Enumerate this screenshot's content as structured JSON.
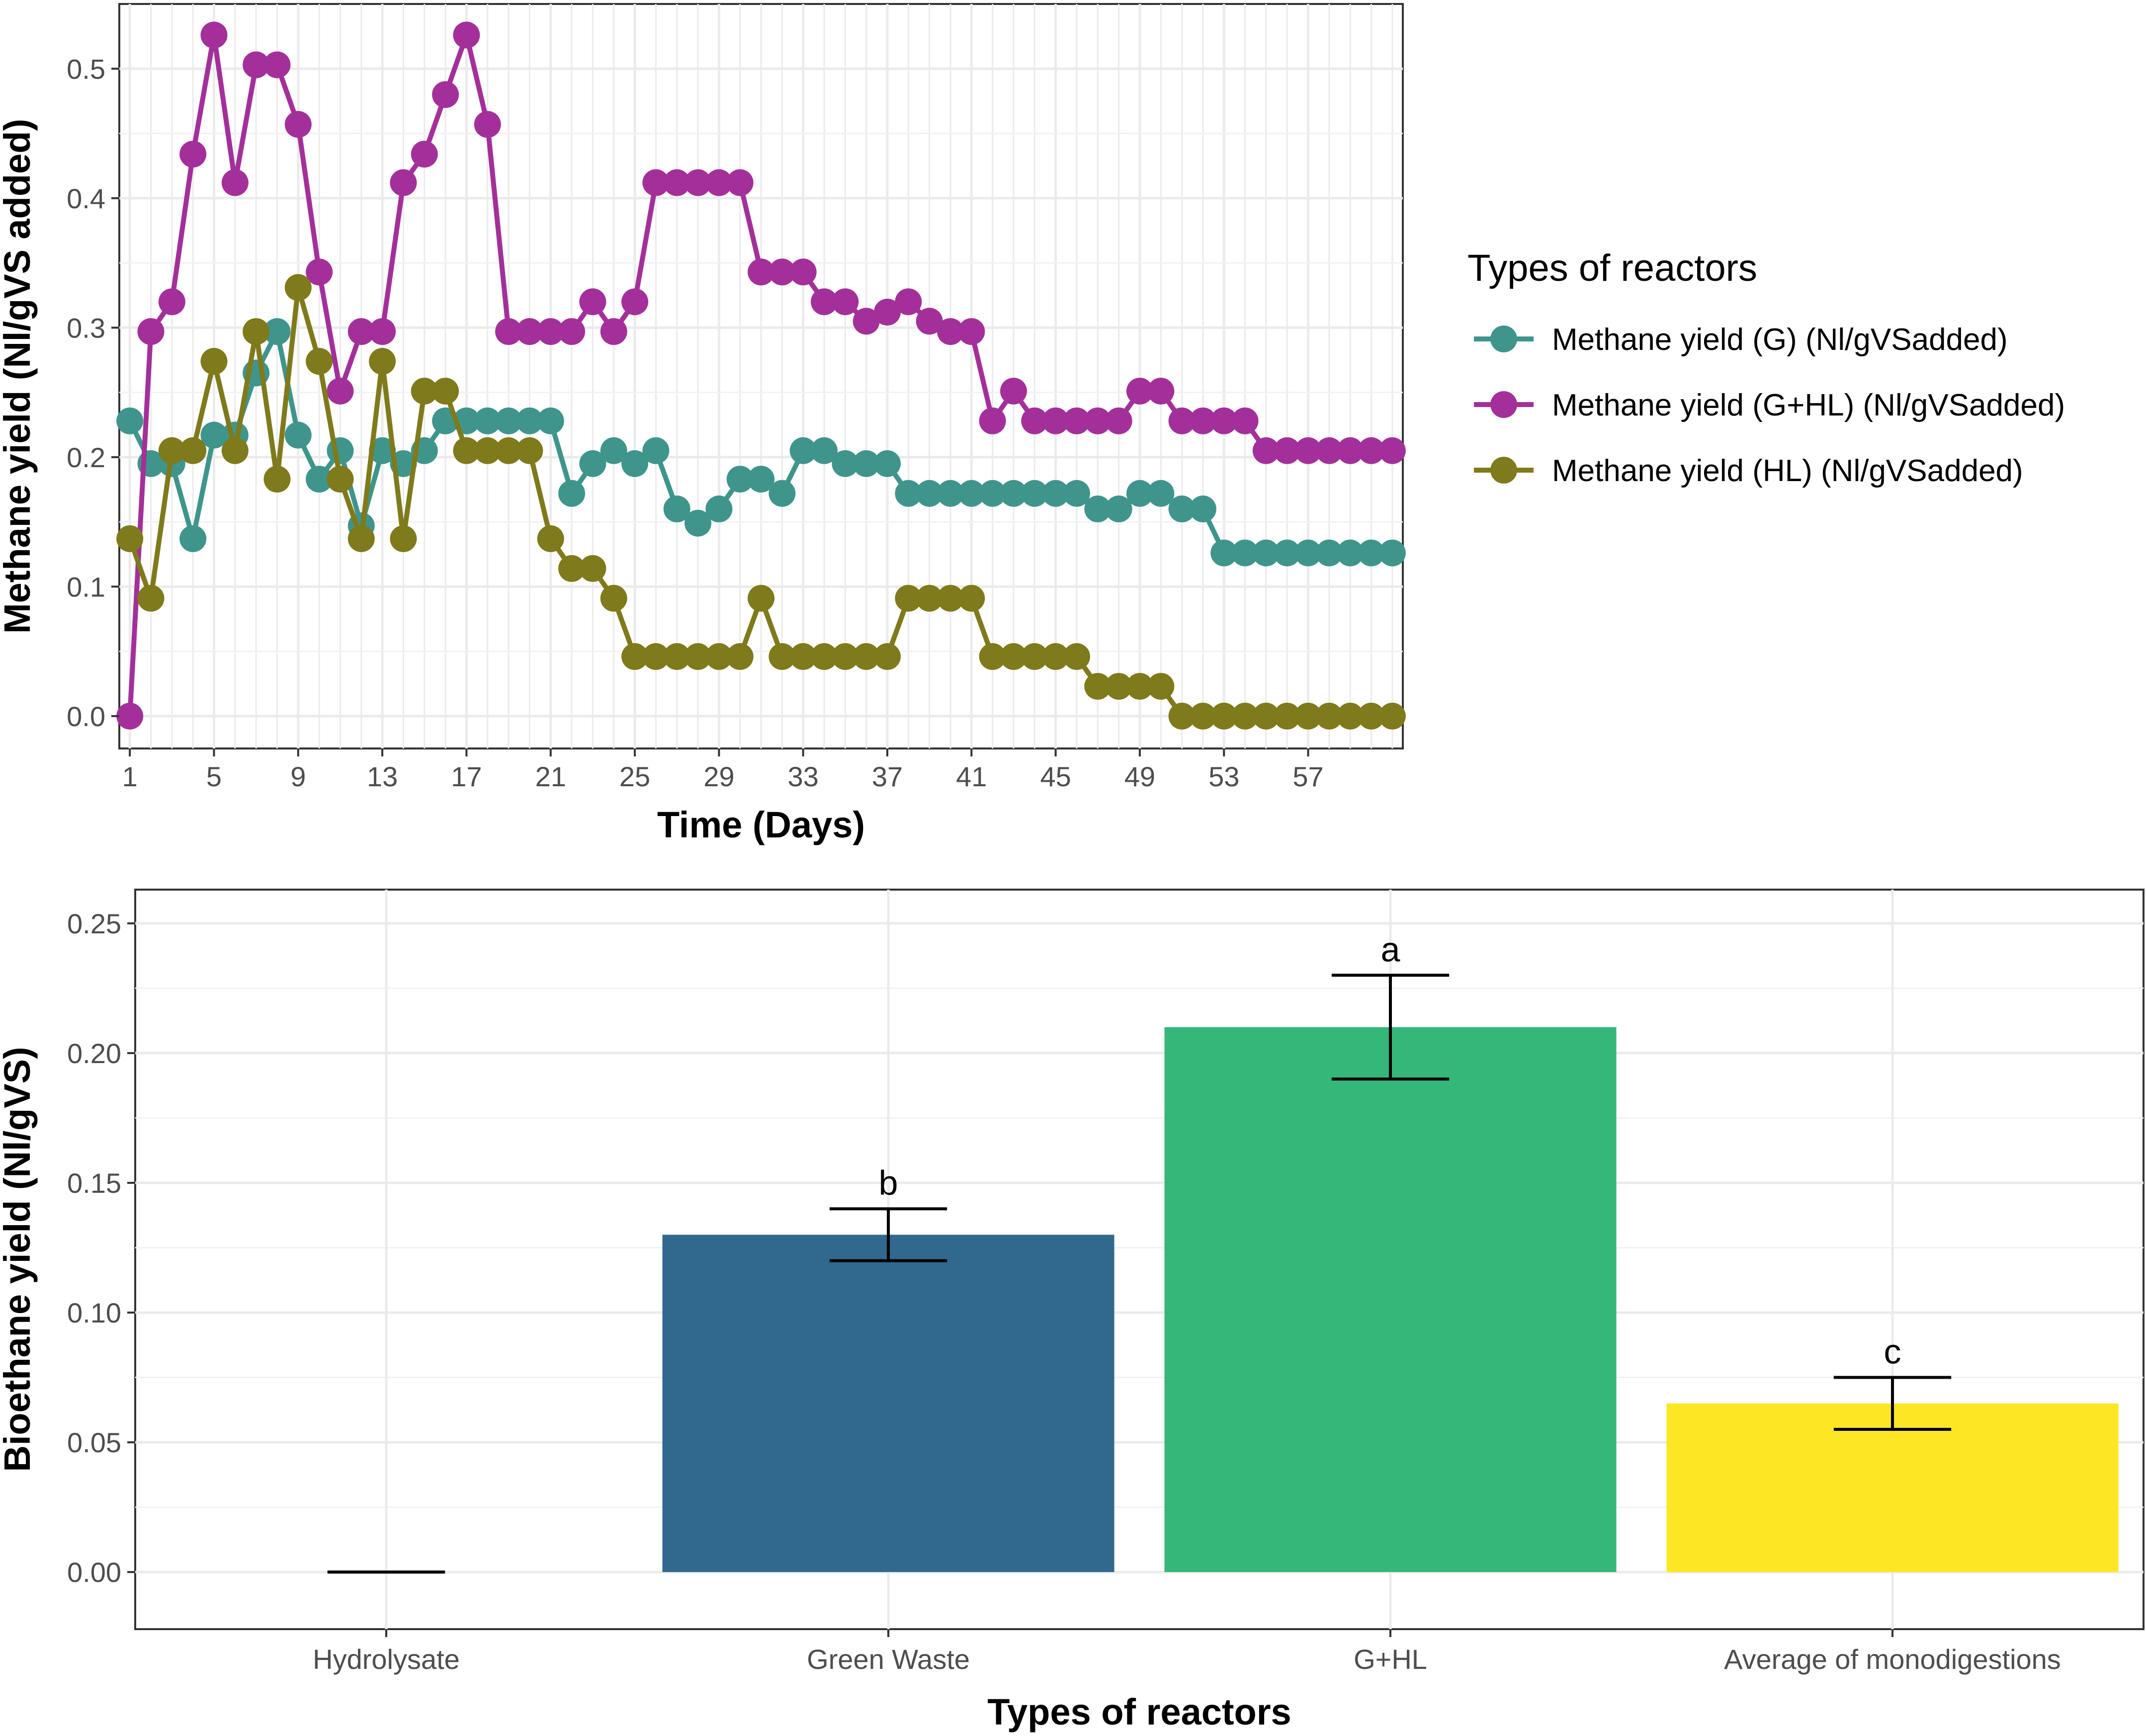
{
  "chart_data": [
    {
      "type": "line",
      "title": "",
      "xlabel": "Time (Days)",
      "ylabel": "Methane yield (Nl/gVS added)",
      "xlim": [
        0.5,
        61.5
      ],
      "ylim": [
        -0.025,
        0.55
      ],
      "x_ticks": [
        1,
        5,
        9,
        13,
        17,
        21,
        25,
        29,
        33,
        37,
        41,
        45,
        49,
        53,
        57
      ],
      "y_ticks": [
        0.0,
        0.1,
        0.2,
        0.3,
        0.4,
        0.5
      ],
      "y_tick_labels": [
        "0.0",
        "0.1",
        "0.2",
        "0.3",
        "0.4",
        "0.5"
      ],
      "grid": true,
      "legend": {
        "title": "Types of reactors",
        "position": "right"
      },
      "x": [
        1,
        2,
        3,
        4,
        5,
        6,
        7,
        8,
        9,
        10,
        11,
        12,
        13,
        14,
        15,
        16,
        17,
        18,
        19,
        20,
        21,
        22,
        23,
        24,
        25,
        26,
        27,
        28,
        29,
        30,
        31,
        32,
        33,
        34,
        35,
        36,
        37,
        38,
        39,
        40,
        41,
        42,
        43,
        44,
        45,
        46,
        47,
        48,
        49,
        50,
        51,
        52,
        53,
        54,
        55,
        56,
        57,
        58,
        59,
        60,
        61
      ],
      "series": [
        {
          "name": "Methane yield (G) (Nl/gVSadded)",
          "color": "#3f958b",
          "values": [
            0.228,
            0.195,
            0.195,
            0.137,
            0.217,
            0.217,
            0.265,
            0.297,
            0.217,
            0.183,
            0.205,
            0.147,
            0.205,
            0.195,
            0.205,
            0.228,
            0.228,
            0.228,
            0.228,
            0.228,
            0.228,
            0.172,
            0.195,
            0.205,
            0.195,
            0.205,
            0.16,
            0.149,
            0.16,
            0.183,
            0.183,
            0.172,
            0.205,
            0.205,
            0.195,
            0.195,
            0.195,
            0.172,
            0.172,
            0.172,
            0.172,
            0.172,
            0.172,
            0.172,
            0.172,
            0.172,
            0.16,
            0.16,
            0.172,
            0.172,
            0.16,
            0.16,
            0.126,
            0.126,
            0.126,
            0.126,
            0.126,
            0.126,
            0.126,
            0.126,
            0.126
          ]
        },
        {
          "name": "Methane yield (G+HL) (Nl/gVSadded)",
          "color": "#a3309a",
          "values": [
            0.0,
            0.297,
            0.32,
            0.434,
            0.526,
            0.412,
            0.503,
            0.503,
            0.457,
            0.343,
            0.251,
            0.297,
            0.297,
            0.412,
            0.434,
            0.48,
            0.526,
            0.457,
            0.297,
            0.297,
            0.297,
            0.297,
            0.32,
            0.297,
            0.32,
            0.412,
            0.412,
            0.412,
            0.412,
            0.412,
            0.343,
            0.343,
            0.343,
            0.32,
            0.32,
            0.305,
            0.312,
            0.32,
            0.305,
            0.297,
            0.297,
            0.228,
            0.251,
            0.228,
            0.228,
            0.228,
            0.228,
            0.228,
            0.251,
            0.251,
            0.228,
            0.228,
            0.228,
            0.228,
            0.205,
            0.205,
            0.205,
            0.205,
            0.205,
            0.205,
            0.205
          ]
        },
        {
          "name": "Methane yield (HL) (Nl/gVSadded)",
          "color": "#7f7a1b",
          "values": [
            0.137,
            0.091,
            0.205,
            0.205,
            0.274,
            0.205,
            0.297,
            0.183,
            0.331,
            0.274,
            0.183,
            0.137,
            0.274,
            0.137,
            0.251,
            0.251,
            0.205,
            0.205,
            0.205,
            0.205,
            0.137,
            0.114,
            0.114,
            0.091,
            0.046,
            0.046,
            0.046,
            0.046,
            0.046,
            0.046,
            0.091,
            0.046,
            0.046,
            0.046,
            0.046,
            0.046,
            0.046,
            0.091,
            0.091,
            0.091,
            0.091,
            0.046,
            0.046,
            0.046,
            0.046,
            0.046,
            0.023,
            0.023,
            0.023,
            0.023,
            0.0,
            0.0,
            0.0,
            0.0,
            0.0,
            0.0,
            0.0,
            0.0,
            0.0,
            0.0,
            0.0
          ]
        }
      ]
    },
    {
      "type": "bar",
      "title": "",
      "xlabel": "Types of reactors",
      "ylabel": "Bioethane yield (Nl/gVS)",
      "ylim": [
        -0.022,
        0.263
      ],
      "y_ticks": [
        0.0,
        0.05,
        0.1,
        0.15,
        0.2,
        0.25
      ],
      "y_tick_labels": [
        "0.00",
        "0.05",
        "0.10",
        "0.15",
        "0.20",
        "0.25"
      ],
      "grid": true,
      "categories": [
        "Hydrolysate",
        "Green Waste",
        "G+HL",
        "Average of monodigestions"
      ],
      "values": [
        0.0,
        0.13,
        0.21,
        0.065
      ],
      "errors": [
        0.0,
        0.01,
        0.02,
        0.01
      ],
      "significance": [
        "",
        "b",
        "a",
        "c"
      ],
      "colors": [
        "#440154",
        "#31688e",
        "#35b779",
        "#fde725"
      ]
    }
  ]
}
